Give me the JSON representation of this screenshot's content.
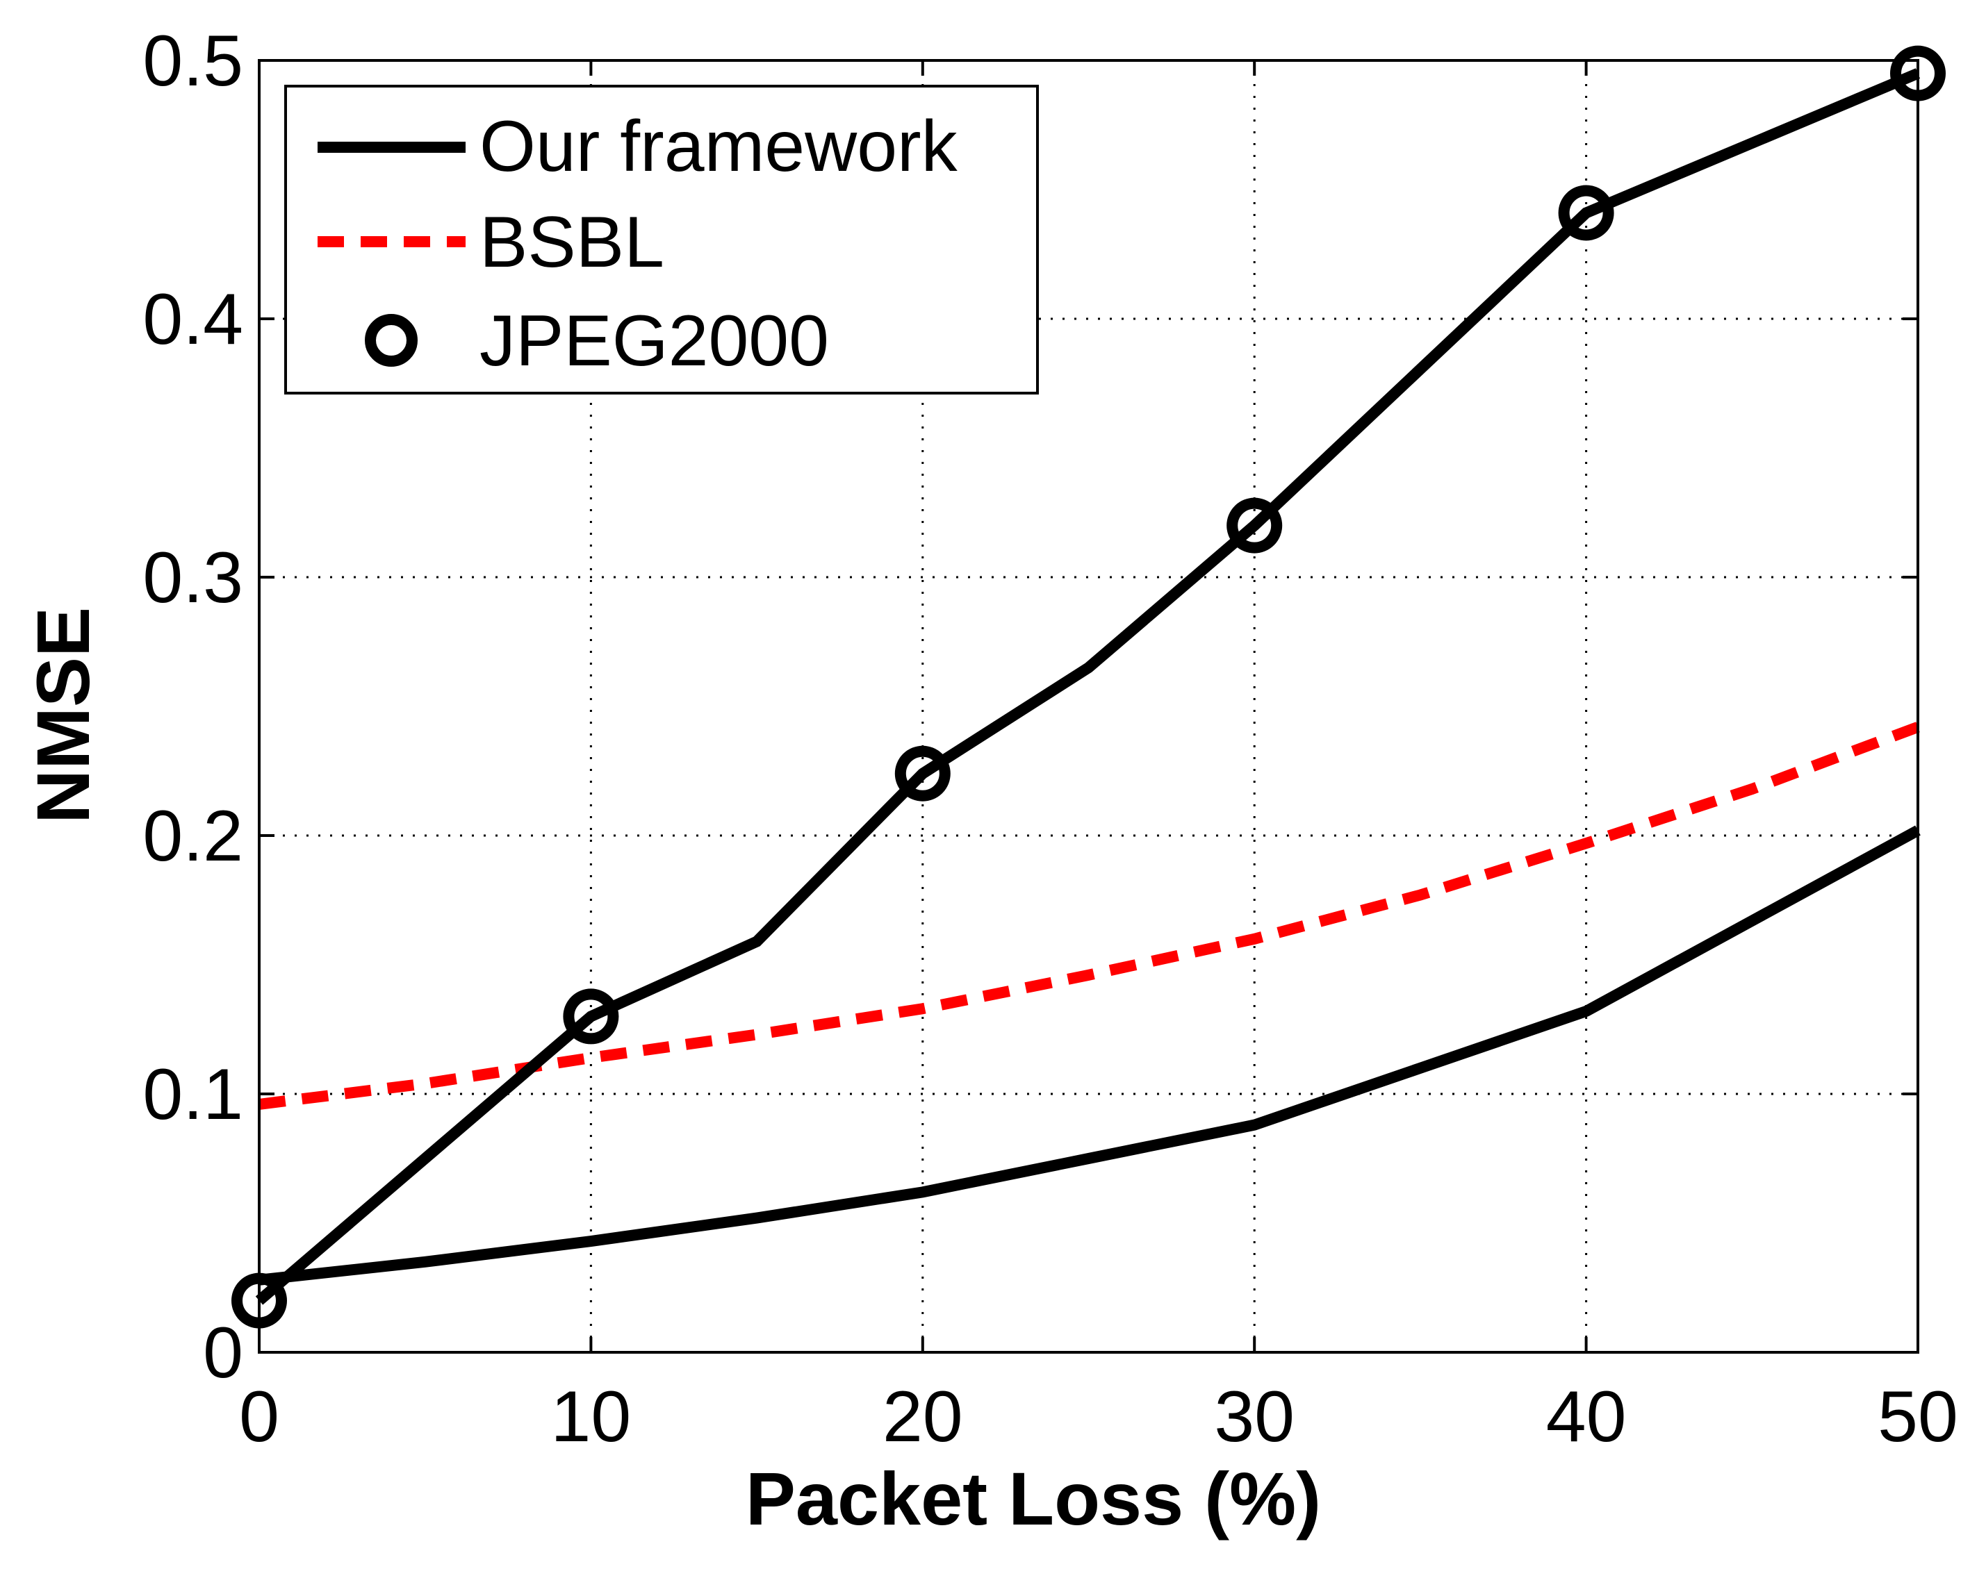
{
  "chart_data": {
    "type": "line",
    "title": "",
    "xlabel": "Packet Loss (%)",
    "ylabel": "NMSE",
    "xlim": [
      0,
      50
    ],
    "ylim": [
      0,
      0.5
    ],
    "xticks": [
      0,
      10,
      20,
      30,
      40,
      50
    ],
    "xtick_labels": [
      "0",
      "10",
      "20",
      "30",
      "40",
      "50"
    ],
    "yticks": [
      0,
      0.1,
      0.2,
      0.3,
      0.4,
      0.5
    ],
    "ytick_labels": [
      "0",
      "0.1",
      "0.2",
      "0.3",
      "0.4",
      "0.5"
    ],
    "grid": true,
    "legend_position": "top-left",
    "series": [
      {
        "name": "Our framework",
        "color": "#000000",
        "style": "solid",
        "marker": "none",
        "x": [
          0,
          5,
          10,
          15,
          20,
          25,
          30,
          35,
          40,
          45,
          50
        ],
        "y": [
          0.028,
          0.035,
          0.043,
          0.052,
          0.062,
          0.075,
          0.088,
          0.11,
          0.132,
          0.167,
          0.202
        ]
      },
      {
        "name": "BSBL",
        "color": "#ff0000",
        "style": "dashed",
        "marker": "none",
        "x": [
          0,
          5,
          10,
          15,
          20,
          25,
          30,
          35,
          40,
          45,
          50
        ],
        "y": [
          0.096,
          0.104,
          0.114,
          0.123,
          0.133,
          0.146,
          0.16,
          0.177,
          0.197,
          0.218,
          0.242
        ]
      },
      {
        "name": "JPEG2000",
        "color": "#000000",
        "style": "solid",
        "marker": "circle",
        "marker_x": [
          0,
          10,
          20,
          30,
          40,
          50
        ],
        "x": [
          0,
          10,
          15,
          20,
          25,
          30,
          40,
          50
        ],
        "y": [
          0.02,
          0.13,
          0.159,
          0.224,
          0.265,
          0.32,
          0.441,
          0.495
        ]
      }
    ]
  }
}
